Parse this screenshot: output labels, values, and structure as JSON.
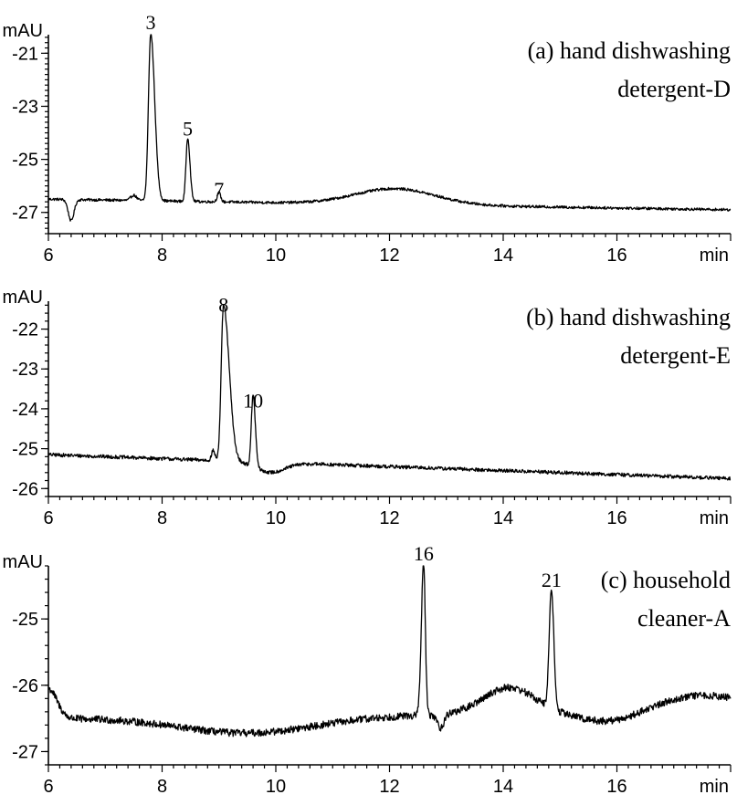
{
  "chart_data": [
    {
      "type": "line",
      "title_lines": [
        "(a) hand dishwashing",
        "detergent-D"
      ],
      "xlabel": "min",
      "ylabel": "mAU",
      "xlim": [
        6,
        18
      ],
      "ylim": [
        -27.8,
        -20.3
      ],
      "x_ticks": [
        6,
        8,
        10,
        12,
        14,
        16
      ],
      "y_ticks": [
        -21,
        -23,
        -25,
        -27
      ],
      "grid": false,
      "baseline": {
        "start": -26.5,
        "end": -26.9,
        "noise": 0.05
      },
      "features": [
        {
          "center": 6.4,
          "height": -0.8,
          "width": 0.05
        },
        {
          "center": 7.5,
          "height": 0.2,
          "width": 0.05
        },
        {
          "center": 7.8,
          "height": 6.3,
          "width": 0.04,
          "tail": 0.07
        },
        {
          "center": 8.45,
          "height": 2.4,
          "width": 0.03,
          "tail": 0.04
        },
        {
          "center": 9.0,
          "height": 0.35,
          "width": 0.03
        },
        {
          "center": 12.1,
          "height": 0.6,
          "width": 0.7
        }
      ],
      "peaks": [
        {
          "label": "3",
          "x": 7.8,
          "y": -20.3
        },
        {
          "label": "5",
          "x": 8.45,
          "y": -24.3
        },
        {
          "label": "7",
          "x": 9.0,
          "y": -26.6
        }
      ]
    },
    {
      "type": "line",
      "title_lines": [
        "(b) hand dishwashing",
        "detergent-E"
      ],
      "xlabel": "min",
      "ylabel": "mAU",
      "xlim": [
        6,
        18
      ],
      "ylim": [
        -26.2,
        -21.3
      ],
      "x_ticks": [
        6,
        8,
        10,
        12,
        14,
        16
      ],
      "y_ticks": [
        -22,
        -23,
        -24,
        -25,
        -26
      ],
      "grid": false,
      "baseline": {
        "start": -25.15,
        "end": -25.75,
        "noise": 0.045
      },
      "features": [
        {
          "center": 8.9,
          "height": 0.25,
          "width": 0.03
        },
        {
          "center": 9.08,
          "height": 3.9,
          "width": 0.04,
          "tail": 0.1
        },
        {
          "center": 9.6,
          "height": 1.8,
          "width": 0.03,
          "tail": 0.04
        },
        {
          "center": 9.9,
          "height": -0.25,
          "width": 0.25
        }
      ],
      "peaks": [
        {
          "label": "8",
          "x": 9.08,
          "y": -21.7
        },
        {
          "label": "10",
          "x": 9.6,
          "y": -24.1
        }
      ]
    },
    {
      "type": "line",
      "title_lines": [
        "(c) household",
        "cleaner-A"
      ],
      "xlabel": "min",
      "ylabel": "mAU",
      "xlim": [
        6,
        18
      ],
      "ylim": [
        -27.2,
        -24.2
      ],
      "x_ticks": [
        6,
        8,
        10,
        12,
        14,
        16
      ],
      "y_ticks": [
        -25,
        -26,
        -27
      ],
      "grid": false,
      "baseline": {
        "start": -26.5,
        "end": -26.4,
        "noise": 0.055
      },
      "features": [
        {
          "center": 6.0,
          "height": 0.45,
          "width": 0.15
        },
        {
          "center": 9.5,
          "height": -0.25,
          "width": 1.2
        },
        {
          "center": 12.6,
          "height": 2.3,
          "width": 0.04,
          "tail": 0.03
        },
        {
          "center": 12.9,
          "height": -0.2,
          "width": 0.06
        },
        {
          "center": 14.1,
          "height": 0.4,
          "width": 0.45
        },
        {
          "center": 14.85,
          "height": 1.8,
          "width": 0.04,
          "tail": 0.04
        },
        {
          "center": 15.9,
          "height": -0.15,
          "width": 0.5
        },
        {
          "center": 17.5,
          "height": 0.25,
          "width": 0.8
        }
      ],
      "peaks": [
        {
          "label": "16",
          "x": 12.6,
          "y": -24.2
        },
        {
          "label": "21",
          "x": 14.85,
          "y": -24.6
        }
      ]
    }
  ]
}
